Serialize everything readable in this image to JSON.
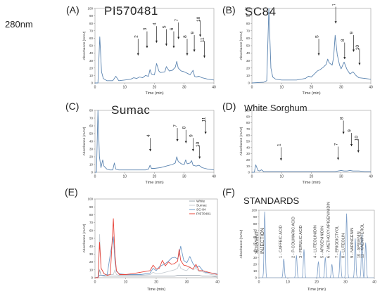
{
  "wavelength": "280nm",
  "chart_data": [
    {
      "type": "line",
      "panel": "(A)",
      "title": "PI570481",
      "xlabel": "Time (min)",
      "ylabel": "Absorbance (mAU)",
      "xlim": [
        0,
        40
      ],
      "ylim": [
        0,
        100
      ],
      "xticks": [
        "0",
        "10",
        "20",
        "30",
        "40"
      ],
      "yticks": [
        "0",
        "10",
        "20",
        "30",
        "40",
        "50",
        "60",
        "70",
        "80",
        "90",
        "100"
      ],
      "x": [
        0,
        1.0,
        1.6,
        2.2,
        2.8,
        4,
        6,
        7,
        8,
        10,
        12,
        13,
        14,
        15,
        16,
        17,
        18,
        18.5,
        19,
        20,
        20.7,
        21.5,
        22,
        23.5,
        24,
        25,
        26,
        27,
        27.5,
        28,
        29,
        30,
        31,
        32,
        33,
        33.5,
        34,
        35,
        36,
        37,
        38,
        40
      ],
      "series": [
        {
          "values": [
            0,
            0,
            62,
            15,
            6,
            3,
            3,
            9,
            3,
            4,
            5,
            7,
            6,
            8,
            7,
            10,
            9,
            18,
            12,
            11,
            26,
            16,
            14,
            15,
            22,
            16,
            17,
            21,
            29,
            20,
            16,
            15,
            13,
            11,
            17,
            9,
            8,
            9,
            7,
            6,
            5,
            4
          ],
          "color": "#5b84b0"
        }
      ],
      "annotations": [
        "2",
        "3",
        "4",
        "5",
        "6",
        "7",
        "8",
        "9",
        "10",
        "11"
      ]
    },
    {
      "type": "line",
      "panel": "(B)",
      "title": "SC84",
      "xlabel": "Time (min)",
      "ylabel": "Absorbance (mAU)",
      "xlim": [
        0,
        40
      ],
      "ylim": [
        0,
        100
      ],
      "xticks": [
        "0",
        "10",
        "20",
        "30",
        "40"
      ],
      "yticks": [
        "0",
        "10",
        "20",
        "30",
        "40",
        "50",
        "60",
        "70",
        "80",
        "90",
        "100"
      ],
      "x": [
        0,
        4,
        5,
        5.7,
        6.4,
        7,
        8,
        10,
        12,
        15,
        18,
        19,
        20,
        21,
        22,
        23,
        24,
        25,
        25.5,
        26,
        27,
        27.5,
        28,
        28.7,
        29.5,
        30,
        31,
        32,
        33,
        34,
        35,
        36,
        38,
        40
      ],
      "series": [
        {
          "values": [
            0,
            1,
            3,
            100,
            20,
            8,
            5,
            4,
            4,
            4,
            6,
            9,
            8,
            12,
            16,
            18,
            21,
            25,
            32,
            27,
            24,
            35,
            64,
            38,
            24,
            19,
            28,
            18,
            12,
            15,
            10,
            7,
            6,
            5
          ],
          "color": "#5b84b0"
        }
      ],
      "annotations": [
        "5",
        "7",
        "8",
        "9",
        "10"
      ]
    },
    {
      "type": "line",
      "panel": "(C)",
      "title": "Sumac",
      "xlabel": "Time (min)",
      "ylabel": "Absorbance (mAU)",
      "xlim": [
        0,
        40
      ],
      "ylim": [
        0,
        80
      ],
      "xticks": [
        "0",
        "10",
        "20",
        "30",
        "40"
      ],
      "yticks": [
        "0",
        "10",
        "20",
        "30",
        "40",
        "50",
        "60",
        "70",
        "80"
      ],
      "x": [
        0,
        0.5,
        1.0,
        1.5,
        2.0,
        2.6,
        3,
        4,
        5,
        6,
        6.5,
        7,
        8,
        10,
        12,
        15,
        17,
        18,
        18.5,
        19,
        20,
        22,
        24,
        25,
        26,
        27,
        27.5,
        28,
        29,
        30,
        30.5,
        31,
        32,
        32.5,
        33,
        34,
        35,
        36,
        37,
        38,
        40
      ],
      "series": [
        {
          "values": [
            0,
            0,
            80,
            20,
            6,
            16,
            8,
            4,
            3,
            3,
            12,
            4,
            3,
            3,
            3,
            3,
            3,
            4,
            9,
            5,
            5,
            6,
            8,
            9,
            10,
            12,
            20,
            14,
            11,
            10,
            16,
            11,
            12,
            15,
            9,
            8,
            9,
            6,
            5,
            4,
            3
          ],
          "color": "#5b84b0"
        }
      ],
      "annotations": [
        "4",
        "7",
        "8",
        "9",
        "10",
        "11"
      ]
    },
    {
      "type": "line",
      "panel": "(D)",
      "title": "White Sorghum",
      "xlabel": "Time (min)",
      "ylabel": "Absorbance (mAU)",
      "xlim": [
        0,
        40
      ],
      "ylim": [
        0,
        100
      ],
      "xticks": [
        "0",
        "10",
        "20",
        "30",
        "40"
      ],
      "yticks": [
        "0",
        "10",
        "20",
        "30",
        "40",
        "50",
        "60",
        "70",
        "80",
        "90",
        "100"
      ],
      "x": [
        0,
        0.8,
        1.3,
        2.0,
        2.6,
        3.2,
        4,
        6,
        8,
        10,
        11,
        15,
        20,
        25,
        28,
        29,
        30,
        31,
        32,
        33,
        34,
        35,
        36,
        38,
        40
      ],
      "series": [
        {
          "values": [
            0,
            0,
            12,
            3,
            2,
            4,
            1,
            1,
            1,
            1,
            1,
            1,
            1,
            1,
            1,
            2,
            3,
            2,
            2,
            3,
            2,
            2,
            2,
            1,
            1
          ],
          "color": "#5b84b0"
        }
      ],
      "annotations": [
        "1",
        "7",
        "8",
        "9",
        "10"
      ]
    },
    {
      "type": "line",
      "panel": "(E)",
      "title": "",
      "xlabel": "Time (min)",
      "ylabel": "Absorbance (mAU)",
      "xlim": [
        0,
        40
      ],
      "ylim": [
        0,
        100
      ],
      "xticks": [
        "0",
        "10",
        "20",
        "30",
        "40"
      ],
      "yticks": [
        "0",
        "10",
        "20",
        "30",
        "40",
        "50",
        "60",
        "70",
        "80",
        "90",
        "100"
      ],
      "legend": "top-right",
      "x": [
        0,
        1.0,
        1.5,
        2.0,
        3,
        4,
        5,
        6,
        6.5,
        7,
        8,
        10,
        12,
        15,
        18,
        19,
        20,
        21,
        22,
        23,
        24,
        25,
        26,
        27,
        27.5,
        28,
        29,
        30,
        31,
        32,
        33,
        34,
        35,
        36,
        38,
        40
      ],
      "series": [
        {
          "name": "White",
          "color": "#9aa4ae",
          "values": [
            0,
            0,
            10,
            3,
            2,
            2,
            2,
            2,
            2,
            2,
            2,
            2,
            2,
            2,
            2,
            2,
            2,
            2,
            2,
            2,
            2,
            2,
            2,
            3,
            3,
            3,
            3,
            3,
            3,
            3,
            3,
            3,
            2,
            2,
            2,
            1
          ]
        },
        {
          "name": "Sumac",
          "color": "#c7cdd3",
          "values": [
            0,
            0,
            55,
            12,
            5,
            4,
            4,
            4,
            10,
            4,
            3,
            3,
            3,
            3,
            4,
            7,
            5,
            5,
            6,
            7,
            8,
            9,
            10,
            12,
            18,
            12,
            10,
            9,
            14,
            10,
            12,
            8,
            8,
            6,
            4,
            3
          ]
        },
        {
          "name": "SC-84",
          "color": "#6e9ac7",
          "values": [
            0,
            1,
            3,
            3,
            3,
            4,
            30,
            52,
            22,
            8,
            5,
            4,
            4,
            4,
            6,
            12,
            9,
            14,
            16,
            18,
            21,
            25,
            26,
            24,
            30,
            40,
            22,
            19,
            27,
            18,
            13,
            15,
            10,
            7,
            6,
            5
          ]
        },
        {
          "name": "PI570481",
          "color": "#e8443a",
          "values": [
            0,
            0,
            45,
            12,
            5,
            3,
            4,
            75,
            30,
            9,
            4,
            4,
            5,
            7,
            9,
            16,
            11,
            12,
            22,
            15,
            20,
            17,
            18,
            21,
            36,
            22,
            16,
            15,
            13,
            11,
            17,
            9,
            9,
            8,
            6,
            4
          ]
        }
      ]
    },
    {
      "type": "line",
      "panel": "(F)",
      "title": "STANDARDS",
      "xlabel": "Time (min)",
      "ylabel": "Absorbance (mAU)",
      "xlim": [
        0,
        40
      ],
      "ylim": [
        0,
        100
      ],
      "xticks": [
        "0",
        "10",
        "20",
        "30",
        "40"
      ],
      "yticks": [
        "0",
        "10",
        "20",
        "30",
        "40",
        "50",
        "60",
        "70",
        "80",
        "90",
        "100"
      ],
      "peaks": [
        {
          "t": 2.0,
          "h": 98,
          "label": "SOLVENT INJECTION"
        },
        {
          "t": 8.6,
          "h": 28,
          "label": "1 - CAFFEIC ACID"
        },
        {
          "t": 13.0,
          "h": 33,
          "label": "2 - P-COUMARIC ACID"
        },
        {
          "t": 15.6,
          "h": 42,
          "label": "3 - FERULIC ACID"
        },
        {
          "t": 20.6,
          "h": 24,
          "label": "4 - LUTEOLINIDIN"
        },
        {
          "t": 23.0,
          "h": 30,
          "label": "5 - APIGENINIDIN"
        },
        {
          "t": 25.3,
          "h": 20,
          "label": "6 - 7-METHOXY-APIGENINIDIN"
        },
        {
          "t": 28.2,
          "h": 40,
          "label": "7 - ERIODICTYOL"
        },
        {
          "t": 30.4,
          "h": 95,
          "label": "8 - LUTEOLIN"
        },
        {
          "t": 33.4,
          "h": 58,
          "label": "9 - NARINGENIN"
        },
        {
          "t": 35.7,
          "h": 65,
          "label": "10 - APIGENIN"
        },
        {
          "t": 37.0,
          "h": 52,
          "label": "11 - KAEMPFEROL"
        }
      ]
    }
  ]
}
